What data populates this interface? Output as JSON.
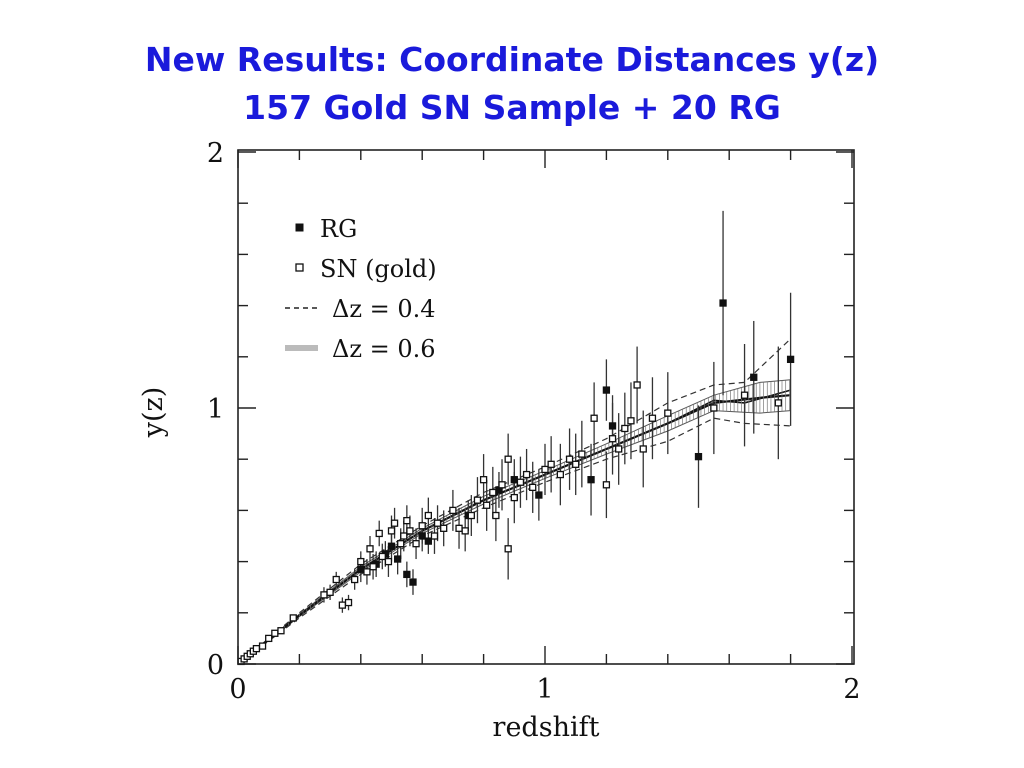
{
  "slide": {
    "title_line1": "New Results: Coordinate Distances y(z)",
    "title_line2": "157 Gold SN Sample + 20 RG"
  },
  "chart_data": {
    "type": "scatter",
    "xlabel": "redshift",
    "ylabel": "y(z)",
    "xlim": [
      0,
      2
    ],
    "ylim": [
      0,
      2
    ],
    "x_ticks": [
      0,
      1,
      2
    ],
    "y_ticks": [
      0,
      1,
      2
    ],
    "grid": false,
    "legend_position": "top-left",
    "legend": [
      {
        "label": "RG",
        "symbol": "filled-square"
      },
      {
        "label": "SN (gold)",
        "symbol": "open-square"
      },
      {
        "label": "Δz  =  0.4",
        "symbol": "dashed-line"
      },
      {
        "label": "Δz  =  0.6",
        "symbol": "hatched-line"
      }
    ],
    "series": [
      {
        "name": "RG",
        "points": [
          [
            0.45,
            0.39,
            0.05
          ],
          [
            0.48,
            0.43,
            0.05
          ],
          [
            0.5,
            0.46,
            0.06
          ],
          [
            0.52,
            0.41,
            0.06
          ],
          [
            0.55,
            0.35,
            0.05
          ],
          [
            0.57,
            0.32,
            0.05
          ],
          [
            0.6,
            0.5,
            0.06
          ],
          [
            0.75,
            0.58,
            0.06
          ],
          [
            0.85,
            0.68,
            0.07
          ],
          [
            0.9,
            0.72,
            0.08
          ],
          [
            0.98,
            0.66,
            0.1
          ],
          [
            1.15,
            0.72,
            0.14
          ],
          [
            1.2,
            1.07,
            0.12
          ],
          [
            1.22,
            0.93,
            0.12
          ],
          [
            1.5,
            0.81,
            0.2
          ],
          [
            1.58,
            1.41,
            0.36
          ],
          [
            1.68,
            1.12,
            0.22
          ],
          [
            1.8,
            1.19,
            0.26
          ],
          [
            0.62,
            0.48,
            0.05
          ],
          [
            0.4,
            0.37,
            0.05
          ]
        ]
      },
      {
        "name": "SN (gold)",
        "points": [
          [
            0.01,
            0.01,
            0.005
          ],
          [
            0.02,
            0.02,
            0.005
          ],
          [
            0.03,
            0.03,
            0.005
          ],
          [
            0.04,
            0.04,
            0.005
          ],
          [
            0.05,
            0.05,
            0.006
          ],
          [
            0.06,
            0.06,
            0.006
          ],
          [
            0.08,
            0.07,
            0.007
          ],
          [
            0.1,
            0.1,
            0.008
          ],
          [
            0.12,
            0.12,
            0.01
          ],
          [
            0.14,
            0.13,
            0.01
          ],
          [
            0.18,
            0.18,
            0.012
          ],
          [
            0.28,
            0.27,
            0.03
          ],
          [
            0.3,
            0.28,
            0.03
          ],
          [
            0.32,
            0.33,
            0.03
          ],
          [
            0.34,
            0.23,
            0.03
          ],
          [
            0.36,
            0.24,
            0.03
          ],
          [
            0.38,
            0.33,
            0.04
          ],
          [
            0.4,
            0.4,
            0.04
          ],
          [
            0.42,
            0.36,
            0.05
          ],
          [
            0.43,
            0.45,
            0.05
          ],
          [
            0.44,
            0.38,
            0.05
          ],
          [
            0.46,
            0.51,
            0.05
          ],
          [
            0.47,
            0.42,
            0.05
          ],
          [
            0.49,
            0.4,
            0.06
          ],
          [
            0.5,
            0.52,
            0.06
          ],
          [
            0.51,
            0.55,
            0.06
          ],
          [
            0.53,
            0.47,
            0.06
          ],
          [
            0.54,
            0.5,
            0.06
          ],
          [
            0.55,
            0.56,
            0.06
          ],
          [
            0.56,
            0.52,
            0.06
          ],
          [
            0.58,
            0.47,
            0.06
          ],
          [
            0.6,
            0.54,
            0.07
          ],
          [
            0.62,
            0.58,
            0.07
          ],
          [
            0.64,
            0.5,
            0.07
          ],
          [
            0.65,
            0.55,
            0.07
          ],
          [
            0.67,
            0.53,
            0.07
          ],
          [
            0.7,
            0.6,
            0.08
          ],
          [
            0.72,
            0.53,
            0.08
          ],
          [
            0.74,
            0.52,
            0.08
          ],
          [
            0.76,
            0.58,
            0.08
          ],
          [
            0.78,
            0.64,
            0.09
          ],
          [
            0.8,
            0.72,
            0.1
          ],
          [
            0.81,
            0.62,
            0.1
          ],
          [
            0.83,
            0.67,
            0.1
          ],
          [
            0.84,
            0.58,
            0.1
          ],
          [
            0.86,
            0.7,
            0.1
          ],
          [
            0.88,
            0.45,
            0.12
          ],
          [
            0.88,
            0.8,
            0.1
          ],
          [
            0.9,
            0.65,
            0.1
          ],
          [
            0.92,
            0.71,
            0.1
          ],
          [
            0.94,
            0.74,
            0.1
          ],
          [
            0.96,
            0.69,
            0.1
          ],
          [
            1.0,
            0.76,
            0.1
          ],
          [
            1.02,
            0.78,
            0.11
          ],
          [
            1.05,
            0.74,
            0.12
          ],
          [
            1.08,
            0.8,
            0.12
          ],
          [
            1.1,
            0.78,
            0.12
          ],
          [
            1.12,
            0.82,
            0.13
          ],
          [
            1.16,
            0.96,
            0.14
          ],
          [
            1.2,
            0.7,
            0.13
          ],
          [
            1.22,
            0.88,
            0.14
          ],
          [
            1.24,
            0.84,
            0.14
          ],
          [
            1.26,
            0.92,
            0.14
          ],
          [
            1.28,
            0.95,
            0.15
          ],
          [
            1.3,
            1.09,
            0.15
          ],
          [
            1.32,
            0.84,
            0.15
          ],
          [
            1.35,
            0.96,
            0.16
          ],
          [
            1.4,
            0.98,
            0.16
          ],
          [
            1.55,
            1.0,
            0.18
          ],
          [
            1.65,
            1.05,
            0.2
          ],
          [
            1.76,
            1.02,
            0.22
          ]
        ]
      },
      {
        "name": "Δz = 0.4",
        "style": "dashed-band",
        "center": [
          [
            0,
            0
          ],
          [
            0.2,
            0.19
          ],
          [
            0.4,
            0.37
          ],
          [
            0.6,
            0.52
          ],
          [
            0.8,
            0.64
          ],
          [
            1.0,
            0.74
          ],
          [
            1.2,
            0.84
          ],
          [
            1.4,
            0.94
          ],
          [
            1.55,
            1.03
          ],
          [
            1.65,
            1.02
          ],
          [
            1.8,
            1.07
          ]
        ],
        "upper": [
          [
            0,
            0
          ],
          [
            0.2,
            0.2
          ],
          [
            0.4,
            0.39
          ],
          [
            0.6,
            0.54
          ],
          [
            0.8,
            0.67
          ],
          [
            1.0,
            0.77
          ],
          [
            1.2,
            0.88
          ],
          [
            1.4,
            1.02
          ],
          [
            1.55,
            1.09
          ],
          [
            1.65,
            1.1
          ],
          [
            1.8,
            1.27
          ]
        ],
        "lower": [
          [
            0,
            0
          ],
          [
            0.2,
            0.18
          ],
          [
            0.4,
            0.35
          ],
          [
            0.6,
            0.5
          ],
          [
            0.8,
            0.61
          ],
          [
            1.0,
            0.71
          ],
          [
            1.2,
            0.8
          ],
          [
            1.4,
            0.87
          ],
          [
            1.55,
            0.96
          ],
          [
            1.65,
            0.94
          ],
          [
            1.8,
            0.93
          ]
        ]
      },
      {
        "name": "Δz = 0.6",
        "style": "hatched-band",
        "center": [
          [
            0,
            0
          ],
          [
            0.2,
            0.19
          ],
          [
            0.4,
            0.37
          ],
          [
            0.6,
            0.52
          ],
          [
            0.8,
            0.64
          ],
          [
            1.0,
            0.74
          ],
          [
            1.2,
            0.84
          ],
          [
            1.4,
            0.94
          ],
          [
            1.55,
            1.02
          ],
          [
            1.7,
            1.04
          ],
          [
            1.8,
            1.05
          ]
        ],
        "upper": [
          [
            0,
            0
          ],
          [
            0.2,
            0.195
          ],
          [
            0.4,
            0.38
          ],
          [
            0.6,
            0.53
          ],
          [
            0.8,
            0.655
          ],
          [
            1.0,
            0.755
          ],
          [
            1.2,
            0.86
          ],
          [
            1.4,
            0.97
          ],
          [
            1.55,
            1.05
          ],
          [
            1.7,
            1.1
          ],
          [
            1.8,
            1.11
          ]
        ],
        "lower": [
          [
            0,
            0
          ],
          [
            0.2,
            0.185
          ],
          [
            0.4,
            0.36
          ],
          [
            0.6,
            0.51
          ],
          [
            0.8,
            0.625
          ],
          [
            1.0,
            0.725
          ],
          [
            1.2,
            0.82
          ],
          [
            1.4,
            0.91
          ],
          [
            1.55,
            0.99
          ],
          [
            1.7,
            0.98
          ],
          [
            1.8,
            0.99
          ]
        ]
      }
    ]
  }
}
